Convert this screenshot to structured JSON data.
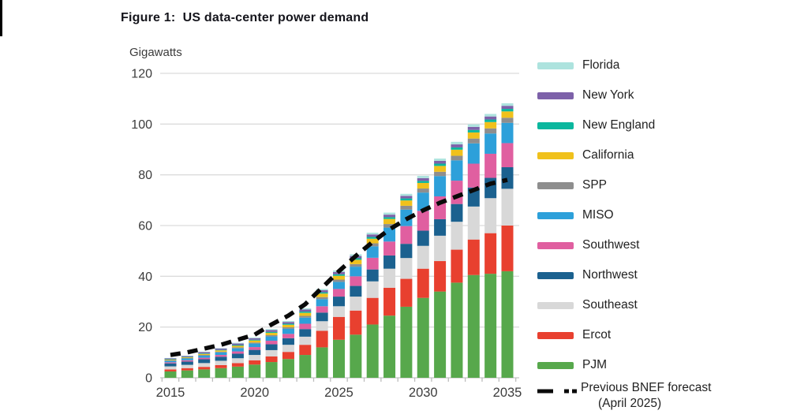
{
  "figure": {
    "title": "Figure 1:  US data-center power demand",
    "y_axis_unit": "Gigawatts"
  },
  "chart_data": {
    "type": "bar",
    "stacked": true,
    "title": "Figure 1: US data-center power demand",
    "ylabel": "Gigawatts",
    "xlabel": "",
    "grid": "horizontal",
    "legend_position": "right",
    "ylim": [
      0,
      120
    ],
    "y_ticks": [
      0,
      20,
      40,
      60,
      80,
      100,
      120
    ],
    "x": [
      2015,
      2016,
      2017,
      2018,
      2019,
      2020,
      2021,
      2022,
      2023,
      2024,
      2025,
      2026,
      2027,
      2028,
      2029,
      2030,
      2031,
      2032,
      2033,
      2034,
      2035
    ],
    "x_tick_labels": [
      "2015",
      "2020",
      "2025",
      "2030",
      "2035"
    ],
    "series": [
      {
        "name": "PJM",
        "color": "#57a84c",
        "values": [
          2.5,
          2.9,
          3.3,
          3.8,
          4.4,
          5.2,
          6.2,
          7.4,
          9.0,
          12.0,
          15.0,
          17.0,
          21.0,
          24.5,
          28.0,
          31.5,
          34.0,
          37.5,
          40.5,
          41.0,
          42.0
        ]
      },
      {
        "name": "Ercot",
        "color": "#e8402f",
        "values": [
          0.8,
          0.9,
          1.0,
          1.2,
          1.4,
          1.7,
          2.2,
          2.8,
          4.0,
          6.5,
          9.0,
          9.5,
          10.5,
          11.0,
          11.0,
          11.5,
          12.0,
          13.0,
          14.0,
          16.0,
          18.0
        ]
      },
      {
        "name": "Southeast",
        "color": "#d8d8d8",
        "values": [
          1.2,
          1.3,
          1.5,
          1.7,
          1.9,
          2.1,
          2.5,
          2.8,
          3.2,
          3.8,
          4.2,
          5.5,
          6.5,
          7.5,
          8.2,
          9.0,
          10.0,
          11.0,
          13.0,
          13.8,
          14.5
        ]
      },
      {
        "name": "Northwest",
        "color": "#1b618f",
        "values": [
          1.2,
          1.3,
          1.5,
          1.6,
          1.8,
          2.0,
          2.3,
          2.6,
          3.0,
          3.4,
          3.8,
          4.2,
          4.7,
          5.2,
          5.6,
          6.0,
          6.5,
          7.0,
          7.5,
          8.0,
          8.5
        ]
      },
      {
        "name": "Southwest",
        "color": "#e05fa0",
        "values": [
          0.4,
          0.5,
          0.6,
          0.7,
          0.9,
          1.1,
          1.4,
          1.7,
          2.1,
          2.5,
          3.0,
          3.8,
          4.6,
          5.5,
          7.0,
          7.8,
          9.0,
          9.2,
          9.4,
          9.5,
          9.5
        ]
      },
      {
        "name": "MISO",
        "color": "#2da0da",
        "values": [
          0.6,
          0.7,
          0.8,
          1.0,
          1.2,
          1.4,
          1.7,
          2.0,
          2.4,
          2.8,
          2.8,
          3.8,
          4.5,
          5.5,
          6.5,
          7.2,
          8.0,
          8.0,
          8.0,
          8.0,
          8.0
        ]
      },
      {
        "name": "SPP",
        "color": "#8e8e8e",
        "values": [
          0.2,
          0.2,
          0.3,
          0.3,
          0.4,
          0.4,
          0.5,
          0.6,
          0.7,
          0.8,
          0.9,
          1.0,
          1.2,
          1.4,
          1.5,
          1.6,
          1.7,
          1.8,
          1.9,
          2.0,
          2.0
        ]
      },
      {
        "name": "California",
        "color": "#f0c11c",
        "values": [
          0.3,
          0.3,
          0.4,
          0.5,
          0.6,
          0.8,
          0.9,
          1.0,
          1.2,
          1.4,
          1.5,
          1.7,
          1.8,
          2.0,
          2.1,
          2.2,
          2.3,
          2.4,
          2.4,
          2.5,
          2.5
        ]
      },
      {
        "name": "New England",
        "color": "#0bb79e",
        "values": [
          0.1,
          0.1,
          0.2,
          0.2,
          0.3,
          0.3,
          0.4,
          0.4,
          0.5,
          0.5,
          0.6,
          0.6,
          0.7,
          0.7,
          0.8,
          0.8,
          0.9,
          0.9,
          1.0,
          1.0,
          1.0
        ]
      },
      {
        "name": "New York",
        "color": "#7d61a9",
        "values": [
          0.4,
          0.4,
          0.5,
          0.5,
          0.6,
          0.6,
          0.7,
          0.7,
          0.8,
          0.8,
          0.9,
          0.9,
          1.0,
          1.0,
          1.0,
          1.1,
          1.1,
          1.2,
          1.2,
          1.2,
          1.2
        ]
      },
      {
        "name": "Florida",
        "color": "#ade3de",
        "values": [
          0.1,
          0.1,
          0.2,
          0.2,
          0.3,
          0.3,
          0.4,
          0.4,
          0.5,
          0.5,
          0.6,
          0.7,
          0.7,
          0.8,
          0.8,
          0.9,
          0.9,
          1.0,
          1.0,
          1.0,
          1.0
        ]
      }
    ],
    "line_series": {
      "name": "Previous BNEF forecast (April 2025)",
      "style": "dashed",
      "color": "#0a0a0a",
      "values": [
        9,
        10,
        11.5,
        13,
        15,
        17,
        21,
        24.5,
        29,
        35.5,
        42,
        48,
        53.5,
        58.5,
        62.5,
        66,
        69,
        71.5,
        74,
        76.5,
        78
      ]
    }
  },
  "legend": {
    "items": [
      {
        "label": "Florida",
        "color": "#ade3de"
      },
      {
        "label": "New York",
        "color": "#7d61a9"
      },
      {
        "label": "New England",
        "color": "#0bb79e"
      },
      {
        "label": "California",
        "color": "#f0c11c"
      },
      {
        "label": "SPP",
        "color": "#8e8e8e"
      },
      {
        "label": "MISO",
        "color": "#2da0da"
      },
      {
        "label": "Southwest",
        "color": "#e05fa0"
      },
      {
        "label": "Northwest",
        "color": "#1b618f"
      },
      {
        "label": "Southeast",
        "color": "#d8d8d8"
      },
      {
        "label": "Ercot",
        "color": "#e8402f"
      },
      {
        "label": "PJM",
        "color": "#57a84c"
      }
    ],
    "forecast": {
      "label_line1": "Previous BNEF forecast",
      "label_line2": "(April 2025)"
    }
  }
}
